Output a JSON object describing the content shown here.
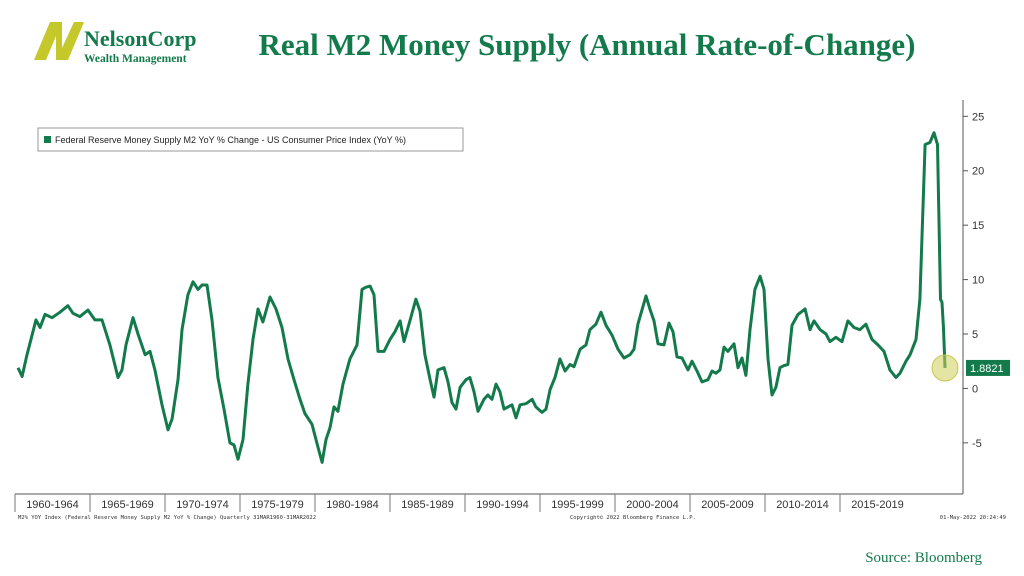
{
  "logo": {
    "name": "NelsonCorp",
    "tagline": "Wealth Management"
  },
  "chart_data": {
    "type": "line",
    "title": "Real M2 Money Supply (Annual Rate-of-Change)",
    "source": "Source: Bloomberg",
    "footer_left": "M2% YOY Index (Federal Reserve Money Supply M2 YoY % Change)  Quarterly 31MAR1960-31MAR2022",
    "footer_center": "Copyright© 2022 Bloomberg Finance L.P.",
    "footer_right": "01-May-2022 20:24:49",
    "legend": "top-left",
    "xlim": [
      1960,
      2023.2
    ],
    "ylim": [
      -9.7,
      26.5
    ],
    "yticks": [
      -5,
      0,
      5,
      10,
      15,
      20,
      25
    ],
    "xticks": [
      {
        "value": 1960,
        "label": "1960-1964"
      },
      {
        "value": 1965,
        "label": "1965-1969"
      },
      {
        "value": 1970,
        "label": "1970-1974"
      },
      {
        "value": 1975,
        "label": "1975-1979"
      },
      {
        "value": 1980,
        "label": "1980-1984"
      },
      {
        "value": 1985,
        "label": "1985-1989"
      },
      {
        "value": 1990,
        "label": "1990-1994"
      },
      {
        "value": 1995,
        "label": "1995-1999"
      },
      {
        "value": 2000,
        "label": "2000-2004"
      },
      {
        "value": 2005,
        "label": "2005-2009"
      },
      {
        "value": 2010,
        "label": "2010-2014"
      },
      {
        "value": 2015,
        "label": "2015-2019"
      }
    ],
    "x": [
      1960.2,
      1960.47,
      1960.8,
      1961.4,
      1961.67,
      1962.0,
      1962.47,
      1963.0,
      1963.53,
      1963.87,
      1964.33,
      1964.87,
      1965.33,
      1965.8,
      1966.33,
      1966.87,
      1967.13,
      1967.4,
      1967.87,
      1968.2,
      1968.67,
      1969.0,
      1969.33,
      1969.8,
      1970.2,
      1970.47,
      1970.87,
      1971.13,
      1971.53,
      1971.87,
      1972.2,
      1972.47,
      1972.8,
      1973.13,
      1973.53,
      1973.93,
      1974.33,
      1974.6,
      1974.87,
      1975.2,
      1975.53,
      1975.87,
      1976.2,
      1976.53,
      1977.0,
      1977.4,
      1977.8,
      1978.2,
      1978.6,
      1979.0,
      1979.33,
      1979.8,
      1980.2,
      1980.47,
      1980.73,
      1981.0,
      1981.27,
      1981.53,
      1981.87,
      1982.33,
      1982.8,
      1983.13,
      1983.4,
      1983.67,
      1983.93,
      1984.2,
      1984.6,
      1985.0,
      1985.33,
      1985.67,
      1985.93,
      1986.33,
      1986.73,
      1987.0,
      1987.33,
      1987.67,
      1987.93,
      1988.2,
      1988.6,
      1988.87,
      1989.13,
      1989.4,
      1989.67,
      1990.07,
      1990.33,
      1990.6,
      1990.87,
      1991.27,
      1991.53,
      1991.8,
      1992.07,
      1992.33,
      1992.6,
      1992.87,
      1993.13,
      1993.4,
      1993.67,
      1994.07,
      1994.47,
      1994.73,
      1995.13,
      1995.4,
      1995.67,
      1996.0,
      1996.33,
      1996.67,
      1997.0,
      1997.27,
      1997.67,
      1998.07,
      1998.33,
      1998.73,
      1999.07,
      1999.4,
      1999.8,
      2000.2,
      2000.6,
      2001.0,
      2001.27,
      2001.53,
      2002.07,
      2002.33,
      2002.6,
      2002.87,
      2003.27,
      2003.6,
      2003.87,
      2004.13,
      2004.47,
      2004.87,
      2005.13,
      2005.47,
      2005.8,
      2006.2,
      2006.47,
      2006.73,
      2007.0,
      2007.27,
      2007.53,
      2007.93,
      2008.2,
      2008.47,
      2008.73,
      2009.0,
      2009.33,
      2009.67,
      2009.93,
      2010.2,
      2010.47,
      2010.73,
      2011.0,
      2011.27,
      2011.53,
      2011.8,
      2012.2,
      2012.67,
      2013.0,
      2013.27,
      2013.67,
      2014.07,
      2014.33,
      2014.73,
      2015.13,
      2015.53,
      2015.93,
      2016.33,
      2016.73,
      2017.13,
      2017.53,
      2017.93,
      2018.33,
      2018.73,
      2019.0,
      2019.4,
      2019.67,
      2020.07,
      2020.33,
      2020.67,
      2021.0,
      2021.27,
      2021.5,
      2021.7,
      2021.8,
      2021.9,
      2022.0
    ],
    "series": [
      {
        "name": "Federal Reserve Money Supply M2 YoY % Change - US Consumer Price Index (YoY %)",
        "color": "#137a4b",
        "values": [
          1.9,
          1.1,
          3.1,
          6.3,
          5.6,
          6.8,
          6.5,
          7.0,
          7.6,
          6.9,
          6.6,
          7.2,
          6.3,
          6.3,
          4.0,
          1.0,
          1.7,
          4.0,
          6.5,
          5.0,
          3.1,
          3.4,
          1.7,
          -1.5,
          -3.8,
          -2.8,
          0.8,
          5.4,
          8.6,
          9.8,
          9.1,
          9.5,
          9.5,
          6.3,
          1.0,
          -1.9,
          -5.0,
          -5.2,
          -6.5,
          -4.7,
          0.4,
          4.5,
          7.3,
          6.1,
          8.4,
          7.3,
          5.6,
          2.7,
          0.8,
          -1.0,
          -2.3,
          -3.3,
          -5.4,
          -6.8,
          -4.7,
          -3.6,
          -1.7,
          -2.1,
          0.4,
          2.7,
          4.0,
          9.1,
          9.3,
          9.4,
          8.6,
          3.4,
          3.4,
          4.5,
          5.2,
          6.2,
          4.3,
          6.2,
          8.2,
          7.1,
          3.1,
          0.8,
          -0.8,
          1.7,
          1.9,
          0.6,
          -1.3,
          -1.9,
          0.1,
          0.8,
          1.0,
          -0.3,
          -2.1,
          -1.0,
          -0.6,
          -1.0,
          0.4,
          -0.3,
          -1.9,
          -1.7,
          -1.5,
          -2.7,
          -1.5,
          -1.4,
          -1.0,
          -1.7,
          -2.2,
          -1.9,
          -0.1,
          1.0,
          2.7,
          1.6,
          2.2,
          2.0,
          3.6,
          4.0,
          5.4,
          5.9,
          7.0,
          5.8,
          4.9,
          3.6,
          2.8,
          3.1,
          3.6,
          5.9,
          8.5,
          7.3,
          6.2,
          4.1,
          4.0,
          6.0,
          5.2,
          2.9,
          2.8,
          1.7,
          2.5,
          1.6,
          0.6,
          0.8,
          1.6,
          1.4,
          1.7,
          3.8,
          3.4,
          4.1,
          1.9,
          2.8,
          1.2,
          5.4,
          9.1,
          10.3,
          9.1,
          2.7,
          -0.6,
          0.1,
          1.9,
          2.1,
          2.2,
          5.8,
          6.8,
          7.3,
          5.4,
          6.2,
          5.4,
          5.0,
          4.3,
          4.7,
          4.3,
          6.2,
          5.6,
          5.4,
          5.9,
          4.5,
          4.0,
          3.4,
          1.7,
          1.0,
          1.4,
          2.5,
          3.1,
          4.5,
          8.2,
          22.4,
          22.6,
          23.5,
          22.4,
          8.2,
          7.9,
          5.5,
          1.8821
        ]
      }
    ]
  }
}
